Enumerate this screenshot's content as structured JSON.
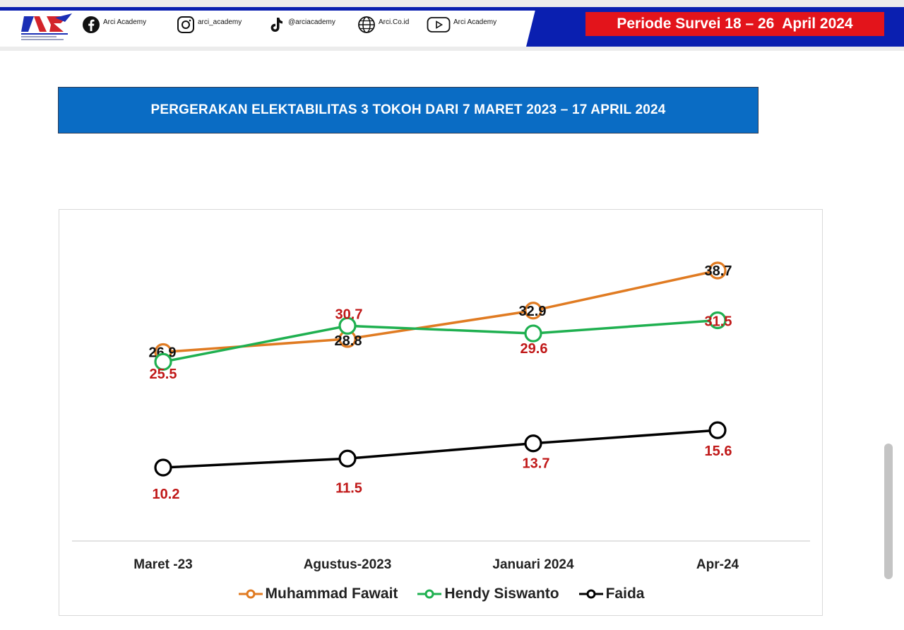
{
  "header": {
    "social": [
      {
        "icon": "facebook-icon",
        "label": "Arci Academy"
      },
      {
        "icon": "instagram-icon",
        "label": "arci_academy"
      },
      {
        "icon": "tiktok-icon",
        "label": "@arciacademy"
      },
      {
        "icon": "globe-icon",
        "label": "Arci.Co.id"
      },
      {
        "icon": "youtube-icon",
        "label": "Arci Academy"
      }
    ],
    "periode": "Periode Survei 18 – 26  April 2024",
    "colors": {
      "navy": "#0a1fb0",
      "red": "#e3141b"
    }
  },
  "banner": {
    "title": "PERGERAKAN ELEKTABILITAS 3 TOKOH DARI 7 MARET 2023 – 17 APRIL 2024"
  },
  "chart_data": {
    "type": "line",
    "categories": [
      "Maret -23",
      "Agustus-2023",
      "Januari 2024",
      "Apr-24"
    ],
    "series": [
      {
        "name": "Muhammad Fawait",
        "color": "#e07b22",
        "label_color": "#111111",
        "values": [
          26.9,
          28.8,
          32.9,
          38.7
        ]
      },
      {
        "name": "Hendy Siswanto",
        "color": "#1fb050",
        "label_color": "#c01818",
        "values": [
          25.5,
          30.7,
          29.6,
          31.5
        ]
      },
      {
        "name": "Faida",
        "color": "#000000",
        "label_color": "#c01818",
        "values": [
          10.2,
          11.5,
          13.7,
          15.6
        ]
      }
    ],
    "legend": "bottom",
    "grid": false
  }
}
